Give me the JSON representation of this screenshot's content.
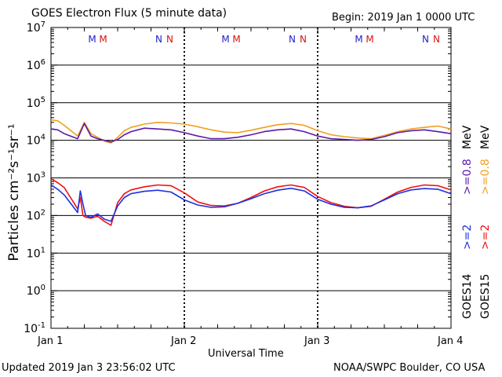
{
  "header": {
    "title": "GOES Electron Flux (5 minute data)",
    "begin": "Begin: 2019 Jan 1 0000 UTC"
  },
  "footer": {
    "updated": "Updated 2019 Jan  3 23:56:02 UTC",
    "credit": "NOAA/SWPC Boulder, CO USA"
  },
  "right_legend": {
    "goes14_label": "GOES14",
    "goes15_label": "GOES15",
    "goes14_ge2": ">=2",
    "goes15_ge2": ">=2",
    "goes14_ge08": ">=0.8",
    "goes15_ge08": ">=0.8",
    "unit_lower": "MeV",
    "unit_upper": "MeV"
  },
  "colors": {
    "goes14_ge2": "#1f2fe0",
    "goes15_ge2": "#ee1111",
    "goes14_ge08": "#5a1aa8",
    "goes15_ge08": "#f0a020",
    "marker_m_first": "#2222cc",
    "marker_m_second": "#dd1111",
    "marker_n_first": "#2222cc",
    "marker_n_second": "#dd1111"
  },
  "markers": [
    {
      "day": 1.35,
      "letters": [
        "M",
        "M"
      ]
    },
    {
      "day": 1.85,
      "letters": [
        "N",
        "N"
      ]
    },
    {
      "day": 2.35,
      "letters": [
        "M",
        "M"
      ]
    },
    {
      "day": 2.85,
      "letters": [
        "N",
        "N"
      ]
    },
    {
      "day": 3.35,
      "letters": [
        "M",
        "M"
      ]
    },
    {
      "day": 3.85,
      "letters": [
        "N",
        "N"
      ]
    }
  ],
  "chart_data": {
    "type": "line",
    "title": "GOES Electron Flux (5 minute data)",
    "xlabel": "Universal Time",
    "ylabel": "Particles cm⁻²s⁻¹sr⁻¹",
    "yscale": "log",
    "ylim": [
      0.1,
      10000000
    ],
    "xlim": [
      1,
      4
    ],
    "x_ticks": [
      "Jan 1",
      "Jan 2",
      "Jan 3",
      "Jan 4"
    ],
    "y_ticks": [
      {
        "base": "10",
        "exp": "7"
      },
      {
        "base": "10",
        "exp": "6"
      },
      {
        "base": "10",
        "exp": "5"
      },
      {
        "base": "10",
        "exp": "4"
      },
      {
        "base": "10",
        "exp": "3"
      },
      {
        "base": "10",
        "exp": "2"
      },
      {
        "base": "10",
        "exp": "1"
      },
      {
        "base": "10",
        "exp": "0"
      },
      {
        "base": "10",
        "exp": "-1"
      }
    ],
    "threshold_dashed": 1000,
    "series": [
      {
        "name": "GOES14 >=0.8 MeV",
        "x": [
          1.0,
          1.05,
          1.1,
          1.2,
          1.25,
          1.3,
          1.35,
          1.4,
          1.45,
          1.5,
          1.55,
          1.6,
          1.7,
          1.8,
          1.9,
          2.0,
          2.1,
          2.2,
          2.3,
          2.4,
          2.5,
          2.6,
          2.7,
          2.8,
          2.9,
          3.0,
          3.1,
          3.2,
          3.3,
          3.4,
          3.5,
          3.6,
          3.7,
          3.8,
          3.9,
          4.0
        ],
        "y": [
          20000,
          19000,
          15000,
          11000,
          28000,
          13000,
          11000,
          10000,
          9000,
          10500,
          14000,
          17000,
          21000,
          20000,
          19000,
          16000,
          13000,
          11000,
          11000,
          12000,
          14000,
          17000,
          19000,
          20000,
          17000,
          13000,
          11000,
          10500,
          10000,
          10500,
          12500,
          16000,
          18000,
          19000,
          17000,
          15000
        ]
      },
      {
        "name": "GOES15 >=0.8 MeV",
        "x": [
          1.0,
          1.05,
          1.1,
          1.2,
          1.25,
          1.3,
          1.35,
          1.4,
          1.45,
          1.5,
          1.55,
          1.6,
          1.7,
          1.8,
          1.9,
          2.0,
          2.1,
          2.2,
          2.3,
          2.4,
          2.5,
          2.6,
          2.7,
          2.8,
          2.9,
          3.0,
          3.1,
          3.2,
          3.3,
          3.4,
          3.5,
          3.6,
          3.7,
          3.8,
          3.9,
          4.0
        ],
        "y": [
          35000,
          33000,
          25000,
          13000,
          30000,
          15000,
          12000,
          9500,
          8500,
          12000,
          18000,
          22000,
          27000,
          30000,
          29000,
          27000,
          23000,
          19000,
          16500,
          16000,
          18500,
          22000,
          26000,
          28000,
          25000,
          18000,
          14000,
          12500,
          11500,
          11000,
          13500,
          17000,
          20000,
          22000,
          24000,
          20000
        ]
      },
      {
        "name": "GOES14 >=2 MeV",
        "x": [
          1.0,
          1.05,
          1.1,
          1.2,
          1.22,
          1.24,
          1.26,
          1.3,
          1.35,
          1.4,
          1.45,
          1.5,
          1.55,
          1.6,
          1.7,
          1.8,
          1.9,
          2.0,
          2.1,
          2.2,
          2.3,
          2.4,
          2.5,
          2.6,
          2.7,
          2.8,
          2.9,
          3.0,
          3.1,
          3.2,
          3.3,
          3.4,
          3.5,
          3.6,
          3.7,
          3.8,
          3.9,
          4.0
        ],
        "y": [
          650,
          500,
          350,
          120,
          450,
          200,
          100,
          90,
          110,
          80,
          70,
          180,
          300,
          380,
          440,
          470,
          420,
          260,
          190,
          165,
          170,
          210,
          280,
          380,
          470,
          530,
          450,
          270,
          200,
          165,
          160,
          180,
          260,
          380,
          480,
          520,
          500,
          380
        ]
      },
      {
        "name": "GOES15 >=2 MeV",
        "x": [
          1.0,
          1.05,
          1.1,
          1.2,
          1.22,
          1.24,
          1.26,
          1.3,
          1.35,
          1.4,
          1.45,
          1.5,
          1.55,
          1.6,
          1.7,
          1.8,
          1.9,
          2.0,
          2.1,
          2.2,
          2.3,
          2.4,
          2.5,
          2.6,
          2.7,
          2.8,
          2.9,
          3.0,
          3.1,
          3.2,
          3.3,
          3.4,
          3.5,
          3.6,
          3.7,
          3.8,
          3.9,
          4.0
        ],
        "y": [
          950,
          750,
          550,
          150,
          300,
          100,
          90,
          85,
          95,
          70,
          55,
          220,
          380,
          480,
          580,
          650,
          620,
          400,
          230,
          185,
          180,
          210,
          300,
          450,
          580,
          650,
          560,
          320,
          220,
          175,
          160,
          175,
          270,
          420,
          560,
          650,
          620,
          480
        ]
      }
    ]
  }
}
